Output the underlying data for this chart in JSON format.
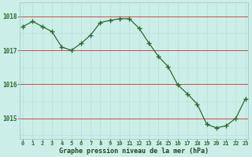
{
  "hours": [
    0,
    1,
    2,
    3,
    4,
    5,
    6,
    7,
    8,
    9,
    10,
    11,
    12,
    13,
    14,
    15,
    16,
    17,
    18,
    19,
    20,
    21,
    22,
    23
  ],
  "pressure": [
    1017.7,
    1017.85,
    1017.7,
    1017.55,
    1017.1,
    1017.0,
    1017.2,
    1017.45,
    1017.82,
    1017.88,
    1017.93,
    1017.93,
    1017.65,
    1017.22,
    1016.82,
    1016.52,
    1015.98,
    1015.72,
    1015.42,
    1014.82,
    1014.72,
    1014.78,
    1015.0,
    1015.58
  ],
  "line_color": "#2d6a2d",
  "marker_color": "#2d6a2d",
  "bg_color": "#cceee8",
  "grid_color_minor": "#b8ddd8",
  "grid_color_major": "#99cccc",
  "red_line_color": "#cc3333",
  "title": "Graphe pression niveau de la mer (hPa)",
  "title_color": "#1a4a1a",
  "tick_color": "#2d6a2d",
  "ylabel_values": [
    1015,
    1016,
    1017,
    1018
  ],
  "ylim": [
    1014.4,
    1018.4
  ],
  "xlim": [
    -0.3,
    23.3
  ]
}
